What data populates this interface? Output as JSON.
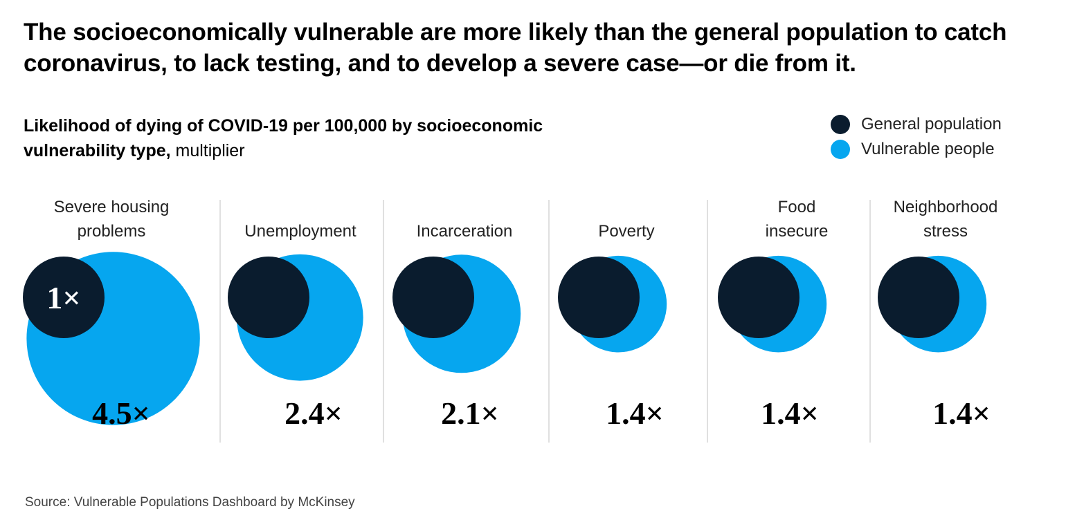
{
  "headline": "The socioeconomically vulnerable are more likely than the general population to catch coronavirus, to lack testing, and to develop a severe case—or die from it.",
  "subhead": {
    "bold": "Likelihood of dying of COVID-19 per 100,000 by socioeconomic vulnerability type,",
    "normal": " multiplier"
  },
  "legend": [
    {
      "label": "General population",
      "color": "#0a1c2e"
    },
    {
      "label": "Vulnerable people",
      "color": "#06a6ef"
    }
  ],
  "source": "Source: Vulnerable Populations Dashboard by McKinsey",
  "chart_data": {
    "type": "bubble",
    "colors": {
      "general": "#0a1c2e",
      "vulnerable": "#06a6ef",
      "divider": "#cccccc"
    },
    "baseline": {
      "value": 1,
      "label": "1×"
    },
    "categories": [
      {
        "label_lines": [
          "Severe housing",
          "problems"
        ],
        "value": 4.5,
        "value_label": "4.5×"
      },
      {
        "label_lines": [
          "Unemployment"
        ],
        "value": 2.4,
        "value_label": "2.4×"
      },
      {
        "label_lines": [
          "Incarceration"
        ],
        "value": 2.1,
        "value_label": "2.1×"
      },
      {
        "label_lines": [
          "Poverty"
        ],
        "value": 1.4,
        "value_label": "1.4×"
      },
      {
        "label_lines": [
          "Food",
          "insecure"
        ],
        "value": 1.4,
        "value_label": "1.4×"
      },
      {
        "label_lines": [
          "Neighborhood",
          "stress"
        ],
        "value": 1.4,
        "value_label": "1.4×"
      }
    ]
  }
}
